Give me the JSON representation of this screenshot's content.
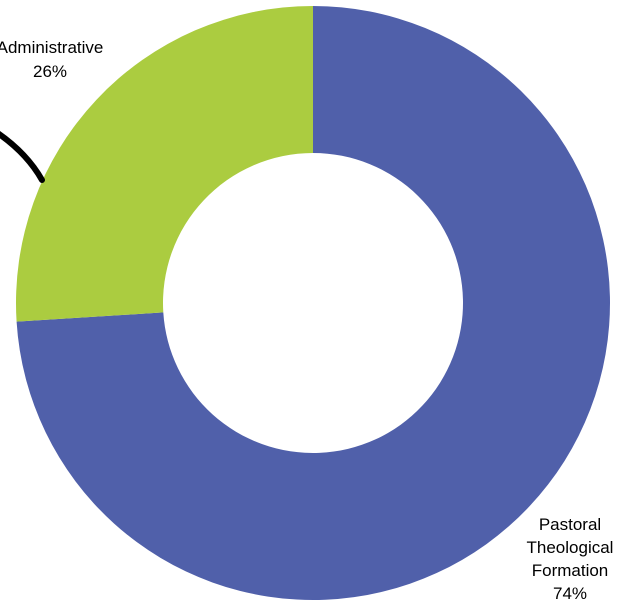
{
  "chart_data": {
    "type": "pie",
    "variant": "donut",
    "title": "",
    "series": [
      {
        "values": [
          74,
          26
        ]
      }
    ],
    "categories": [
      "Pastoral Theological Formation",
      "Administrative"
    ],
    "slices": [
      {
        "label_lines": [
          "Pastoral",
          "Theological",
          "Formation",
          "74%"
        ],
        "category": "Pastoral Theological Formation",
        "value": 74,
        "percent_label": "74%",
        "color": "#5060aa"
      },
      {
        "label_lines": [
          "Administrative",
          "26%"
        ],
        "category": "Administrative",
        "value": 26,
        "percent_label": "26%",
        "color": "#abcc40"
      }
    ],
    "legend": "none"
  }
}
